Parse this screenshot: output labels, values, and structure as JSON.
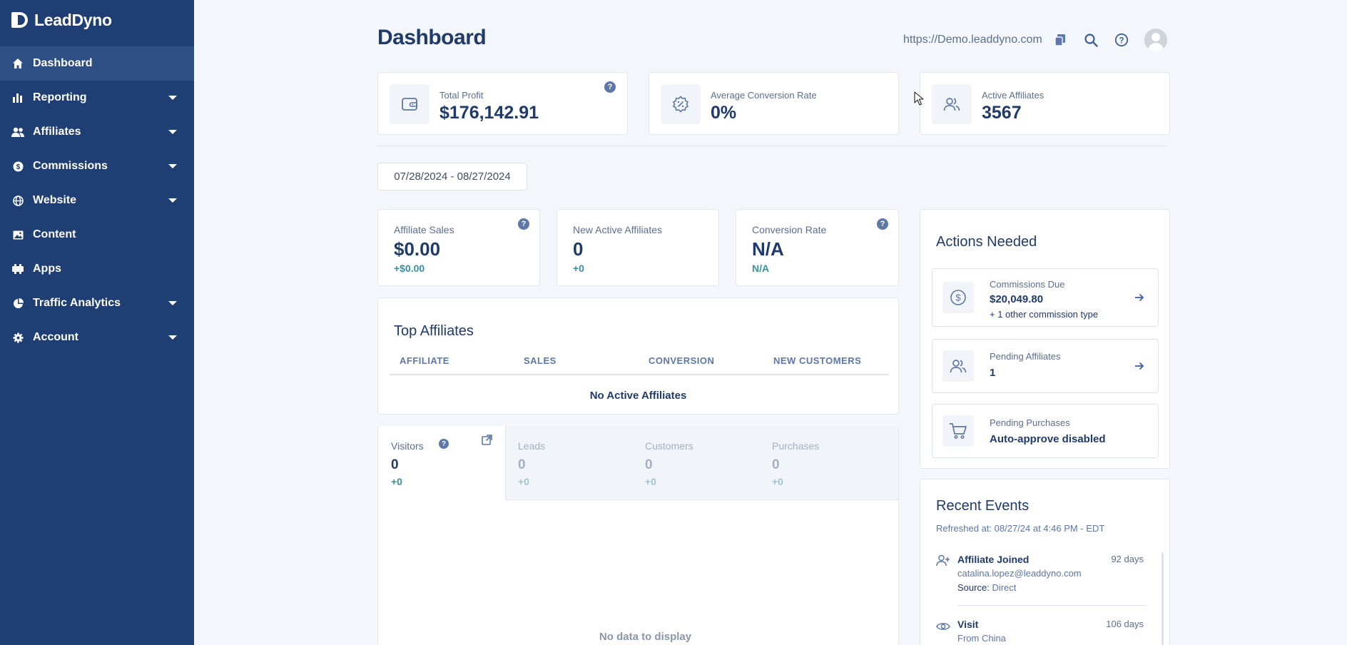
{
  "app": {
    "name": "LeadDyno"
  },
  "sidebar": {
    "items": [
      {
        "label": "Dashboard",
        "icon": "home-icon",
        "has_caret": false,
        "active": true
      },
      {
        "label": "Reporting",
        "icon": "bar-chart-icon",
        "has_caret": true
      },
      {
        "label": "Affiliates",
        "icon": "users-icon",
        "has_caret": true
      },
      {
        "label": "Commissions",
        "icon": "dollar-coin-icon",
        "has_caret": true
      },
      {
        "label": "Website",
        "icon": "globe-icon",
        "has_caret": true
      },
      {
        "label": "Content",
        "icon": "image-icon",
        "has_caret": false
      },
      {
        "label": "Apps",
        "icon": "puzzle-icon",
        "has_caret": false
      },
      {
        "label": "Traffic Analytics",
        "icon": "pie-chart-icon",
        "has_caret": true
      },
      {
        "label": "Account",
        "icon": "gear-icon",
        "has_caret": true
      }
    ]
  },
  "header": {
    "title": "Dashboard",
    "site_url": "https://Demo.leaddyno.com"
  },
  "kpis": [
    {
      "label": "Total Profit",
      "value": "$176,142.91",
      "icon": "wallet-icon"
    },
    {
      "label": "Average Conversion Rate",
      "value": "0%",
      "icon": "percent-badge-icon"
    },
    {
      "label": "Active Affiliates",
      "value": "3567",
      "icon": "users-icon"
    }
  ],
  "date_range": "07/28/2024 - 08/27/2024",
  "stats": [
    {
      "label": "Affiliate Sales",
      "value": "$0.00",
      "delta": "+$0.00"
    },
    {
      "label": "New Active Affiliates",
      "value": "0",
      "delta": "+0"
    },
    {
      "label": "Conversion Rate",
      "value": "N/A",
      "delta": "N/A"
    }
  ],
  "top_affiliates": {
    "title": "Top Affiliates",
    "columns": [
      "AFFILIATE",
      "SALES",
      "CONVERSION",
      "NEW CUSTOMERS"
    ],
    "empty_message": "No Active Affiliates"
  },
  "traffic": {
    "tabs": [
      {
        "label": "Visitors",
        "value": "0",
        "delta": "+0"
      },
      {
        "label": "Leads",
        "value": "0",
        "delta": "+0"
      },
      {
        "label": "Customers",
        "value": "0",
        "delta": "+0"
      },
      {
        "label": "Purchases",
        "value": "0",
        "delta": "+0"
      }
    ],
    "empty_message": "No data to display"
  },
  "actions": {
    "title": "Actions Needed",
    "items": [
      {
        "title": "Commissions Due",
        "value": "$20,049.80",
        "sub": "+ 1 other commission type",
        "icon": "dollar-circle-icon"
      },
      {
        "title": "Pending Affiliates",
        "value": "1",
        "icon": "users-icon"
      },
      {
        "title": "Pending Purchases",
        "value": "Auto-approve disabled",
        "icon": "cart-icon"
      }
    ]
  },
  "recent_events": {
    "title": "Recent Events",
    "refreshed": "Refreshed at: 08/27/24 at 4:46 PM - EDT",
    "items": [
      {
        "title": "Affiliate Joined",
        "time": "92 days",
        "line1": "catalina.lopez@leaddyno.com",
        "line2_label": "Source:",
        "line2_value": "Direct",
        "icon": "user-plus-icon"
      },
      {
        "title": "Visit",
        "time": "106 days",
        "line1": "From China",
        "icon": "eye-icon"
      }
    ]
  },
  "colors": {
    "sidebar": "#1f3f74",
    "sidebar_active": "#2e4f84",
    "primary_text": "#1f3a6b",
    "accent_teal": "#3a8f9f"
  }
}
